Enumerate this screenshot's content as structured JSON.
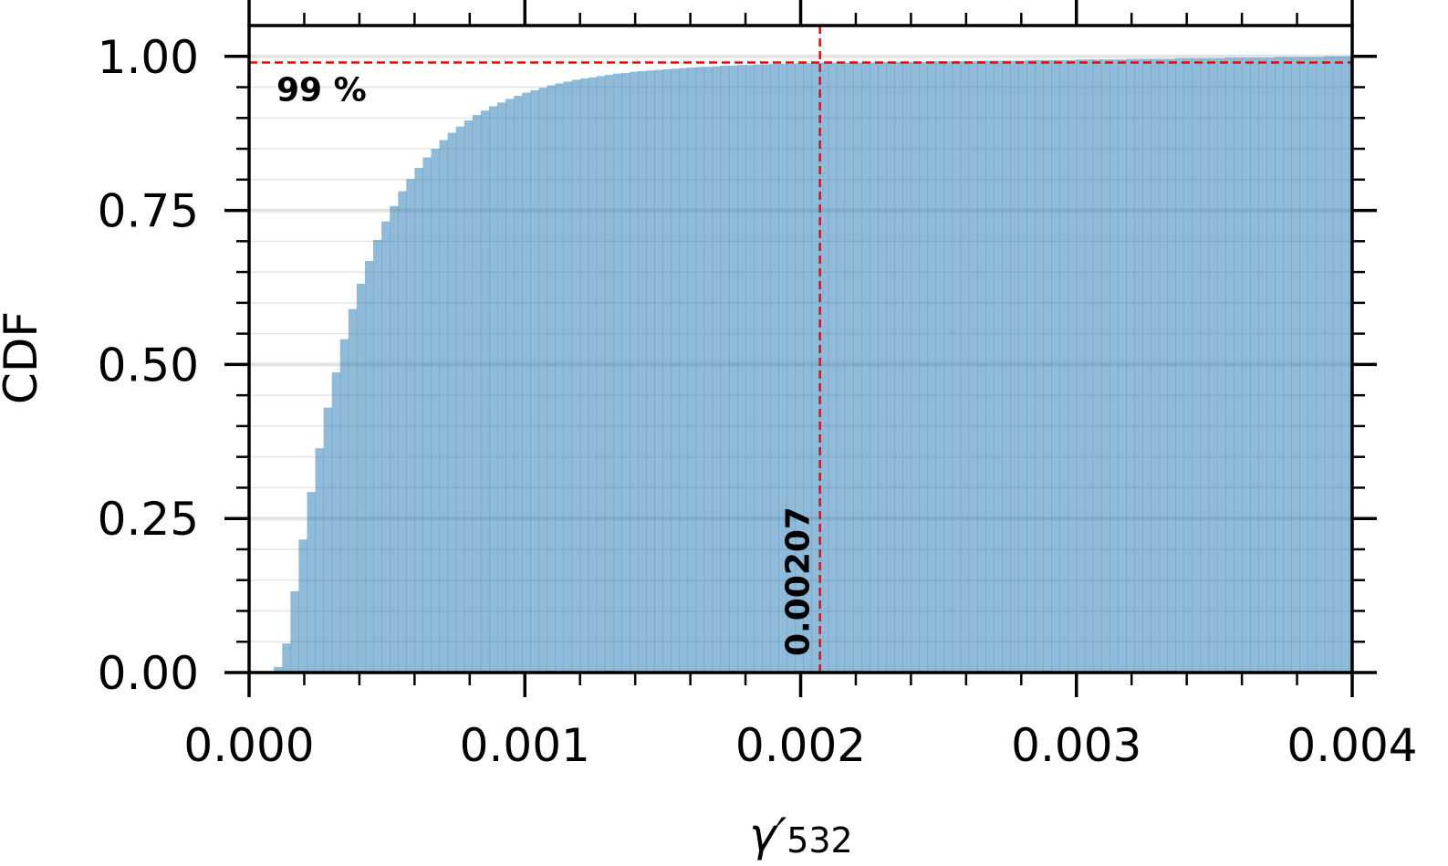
{
  "chart_data": {
    "type": "histogram",
    "ylabel": "CDF",
    "xlabel": {
      "symbol": "γ′",
      "subscript": "532"
    },
    "bins": [
      0,
      3e-05,
      6e-05,
      9e-05,
      0.00012,
      0.00015,
      0.00018,
      0.00021,
      0.00024,
      0.00027,
      0.0003,
      0.00033,
      0.00036,
      0.00039,
      0.00042,
      0.00045,
      0.00048,
      0.00051,
      0.00054,
      0.00057,
      0.0006,
      0.00063,
      0.00066,
      0.00069,
      0.00072,
      0.00075,
      0.00078,
      0.00081,
      0.00084,
      0.00087,
      0.0009,
      0.00093,
      0.00096,
      0.00099,
      0.00102,
      0.00105,
      0.00108,
      0.00111,
      0.00114,
      0.00117,
      0.0012,
      0.00123,
      0.00126,
      0.00129,
      0.00132,
      0.00135,
      0.00138,
      0.00141,
      0.00144,
      0.00147,
      0.0015,
      0.00153,
      0.00156,
      0.00159,
      0.00162,
      0.00165,
      0.00168,
      0.00171,
      0.00174,
      0.00177,
      0.0018,
      0.00183,
      0.00186,
      0.00189,
      0.00192,
      0.00195,
      0.00198,
      0.00201,
      0.00204,
      0.00207,
      0.0021,
      0.00213,
      0.00216,
      0.00219,
      0.00222,
      0.00225,
      0.00228,
      0.00231,
      0.00234,
      0.00237,
      0.0024,
      0.00243,
      0.00246,
      0.00249,
      0.00252,
      0.00255,
      0.00258,
      0.00261,
      0.00264,
      0.00267,
      0.0027,
      0.00273,
      0.00276,
      0.00279,
      0.00282,
      0.00285,
      0.00288,
      0.00291,
      0.00294,
      0.00297,
      0.003,
      0.00303,
      0.00306,
      0.00309,
      0.00312,
      0.00315,
      0.00318,
      0.00321,
      0.00324,
      0.00327,
      0.0033,
      0.00333,
      0.00336,
      0.00339,
      0.00342,
      0.00345,
      0.00348,
      0.00351,
      0.00354,
      0.00357,
      0.0036,
      0.00363,
      0.00366,
      0.00369,
      0.00372,
      0.00375,
      0.00378,
      0.00381,
      0.00384,
      0.00387,
      0.0039,
      0.00393,
      0.00396,
      0.00399,
      0.00402
    ],
    "values": [
      0,
      0,
      0,
      0.009,
      0.047,
      0.132,
      0.216,
      0.293,
      0.364,
      0.43,
      0.487,
      0.541,
      0.59,
      0.631,
      0.668,
      0.702,
      0.732,
      0.757,
      0.781,
      0.801,
      0.819,
      0.836,
      0.85,
      0.864,
      0.876,
      0.886,
      0.896,
      0.905,
      0.912,
      0.919,
      0.925,
      0.931,
      0.936,
      0.941,
      0.945,
      0.949,
      0.953,
      0.956,
      0.959,
      0.962,
      0.964,
      0.966,
      0.968,
      0.97,
      0.972,
      0.973,
      0.975,
      0.976,
      0.977,
      0.978,
      0.979,
      0.98,
      0.981,
      0.982,
      0.983,
      0.983,
      0.984,
      0.985,
      0.985,
      0.986,
      0.986,
      0.987,
      0.987,
      0.988,
      0.988,
      0.988,
      0.989,
      0.989,
      0.989,
      0.99,
      0.99,
      0.99,
      0.99,
      0.99,
      0.99,
      0.99,
      0.991,
      0.991,
      0.991,
      0.991,
      0.991,
      0.991,
      0.992,
      0.992,
      0.992,
      0.992,
      0.992,
      0.992,
      0.993,
      0.993,
      0.993,
      0.993,
      0.993,
      0.993,
      0.994,
      0.994,
      0.994,
      0.994,
      0.994,
      0.994,
      0.995,
      0.995,
      0.995,
      0.995,
      0.995,
      0.995,
      0.996,
      0.996,
      0.996,
      0.996,
      0.996,
      0.996,
      0.997,
      0.997,
      0.997,
      0.997,
      0.997,
      0.997,
      0.998,
      0.998,
      0.998,
      0.998,
      0.998,
      0.998,
      0.999,
      0.999,
      0.999,
      0.999,
      0.999,
      0.999,
      1.0,
      1.0,
      1.0,
      1.0
    ],
    "color": "#1f77b4",
    "alpha": 0.5,
    "xlim": [
      0,
      0.004
    ],
    "ylim": [
      0,
      1.05
    ],
    "xticks": [
      {
        "value": 0,
        "label": "0.000"
      },
      {
        "value": 0.001,
        "label": "0.001"
      },
      {
        "value": 0.002,
        "label": "0.002"
      },
      {
        "value": 0.003,
        "label": "0.003"
      },
      {
        "value": 0.004,
        "label": "0.004"
      }
    ],
    "xminorticks": [
      0.0002,
      0.0004,
      0.0006,
      0.0008,
      0.0012,
      0.0014,
      0.0016,
      0.0018,
      0.0022,
      0.0024,
      0.0026,
      0.0028,
      0.0032,
      0.0034,
      0.0036,
      0.0038
    ],
    "yticks": [
      {
        "value": 0,
        "label": "0.00"
      },
      {
        "value": 0.25,
        "label": "0.25"
      },
      {
        "value": 0.5,
        "label": "0.50"
      },
      {
        "value": 0.75,
        "label": "0.75"
      },
      {
        "value": 1,
        "label": "1.00"
      }
    ],
    "yminorticks": [
      0.05,
      0.1,
      0.15,
      0.2,
      0.3,
      0.35,
      0.4,
      0.45,
      0.55,
      0.6,
      0.65,
      0.7,
      0.8,
      0.85,
      0.9,
      0.95
    ],
    "grid": true,
    "annotations": [
      {
        "kind": "hline",
        "value": 0.99,
        "label": "99 %",
        "color": "red"
      },
      {
        "kind": "vline",
        "value": 0.00207,
        "label": "0.00207",
        "color": "red"
      }
    ]
  }
}
